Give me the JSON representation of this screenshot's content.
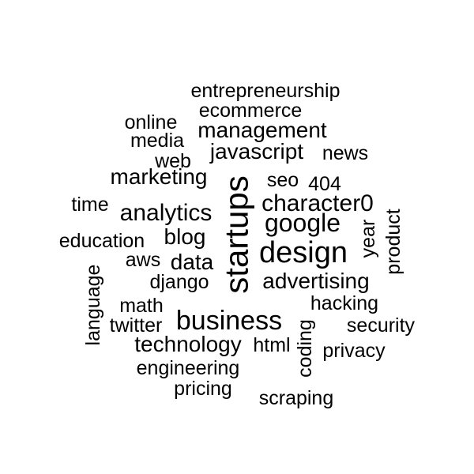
{
  "word_cloud": {
    "words": [
      "entrepreneurship",
      "ecommerce",
      "online",
      "management",
      "media",
      "javascript",
      "news",
      "web",
      "marketing",
      "seo",
      "404",
      "startups",
      "character0",
      "time",
      "analytics",
      "google",
      "year",
      "product",
      "education",
      "blog",
      "design",
      "aws",
      "data",
      "django",
      "advertising",
      "language",
      "math",
      "hacking",
      "twitter",
      "business",
      "security",
      "technology",
      "html",
      "coding",
      "privacy",
      "engineering",
      "pricing",
      "scraping"
    ],
    "text_color": "#000000",
    "background_color": "#ffffff"
  }
}
